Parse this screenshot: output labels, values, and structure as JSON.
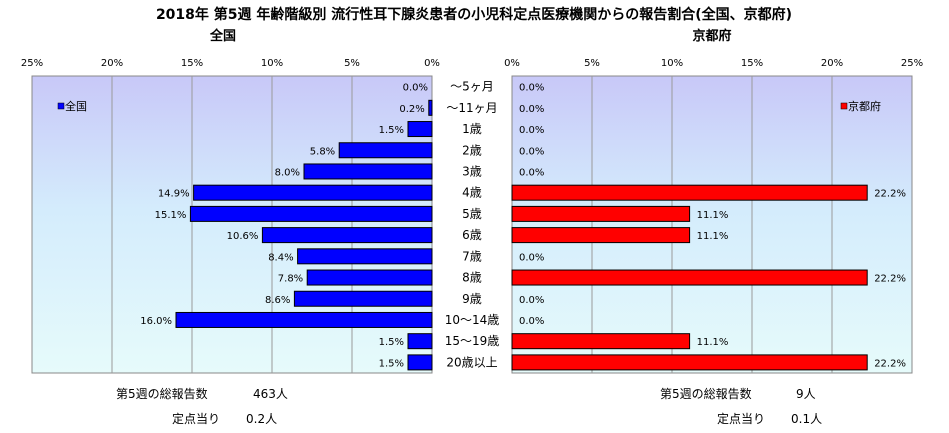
{
  "title": "2018年  第5週  年齢階級別  流行性耳下腺炎患者の小児科定点医療機関からの報告割合(全国、京都府)",
  "chart_data": {
    "type": "bar",
    "orientation": "horizontal",
    "categories": [
      "～5ヶ月",
      "～11ヶ月",
      "1歳",
      "2歳",
      "3歳",
      "4歳",
      "5歳",
      "6歳",
      "7歳",
      "8歳",
      "9歳",
      "10～14歳",
      "15～19歳",
      "20歳以上"
    ],
    "panels": [
      {
        "subtitle": "全国",
        "series": [
          {
            "name": "全国",
            "color": "#0000ff",
            "values": [
              0.0,
              0.2,
              1.5,
              5.8,
              8.0,
              14.9,
              15.1,
              10.6,
              8.4,
              7.8,
              8.6,
              16.0,
              1.5,
              1.5
            ]
          }
        ],
        "xlim": [
          0,
          25
        ],
        "x_ticks": [
          "25%",
          "20%",
          "15%",
          "10%",
          "5%",
          "0%"
        ],
        "direction": "right-to-left",
        "legend": "top-left"
      },
      {
        "subtitle": "京都府",
        "series": [
          {
            "name": "京都府",
            "color": "#ff0000",
            "values": [
              0.0,
              0.0,
              0.0,
              0.0,
              0.0,
              22.2,
              11.1,
              11.1,
              0.0,
              22.2,
              0.0,
              0.0,
              11.1,
              22.2
            ]
          }
        ],
        "xlim": [
          0,
          25
        ],
        "x_ticks": [
          "0%",
          "5%",
          "10%",
          "15%",
          "20%",
          "25%"
        ],
        "direction": "left-to-right",
        "legend": "top-right"
      }
    ],
    "grid": true
  },
  "footer": {
    "national_total_label": "第5週の総報告数",
    "national_total_value": "463人",
    "national_per_label": "定点当り",
    "national_per_value": "0.2人",
    "kyoto_total_label": "第5週の総報告数",
    "kyoto_total_value": "9人",
    "kyoto_per_label": "定点当り",
    "kyoto_per_value": "0.1人"
  }
}
